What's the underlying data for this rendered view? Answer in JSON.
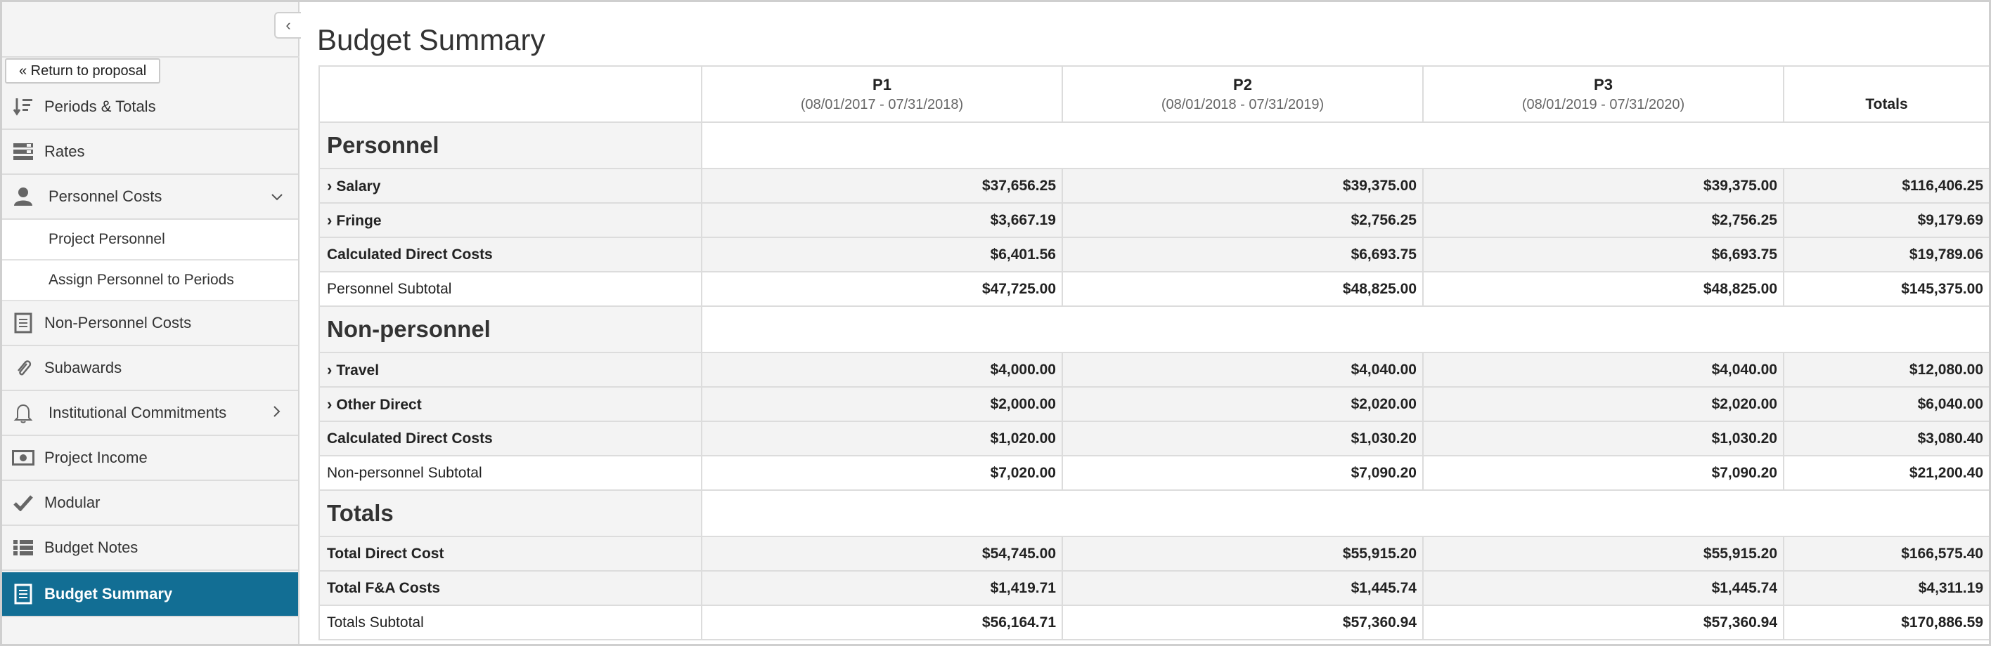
{
  "sidebar": {
    "collapse_icon": "chevron-left-icon",
    "return_label": "« Return to proposal",
    "items": [
      {
        "label": "Periods & Totals",
        "icon": "sort-list-icon"
      },
      {
        "label": "Rates",
        "icon": "rates-icon"
      },
      {
        "label": "Personnel Costs",
        "icon": "person-icon",
        "chevron": "⌄"
      },
      {
        "label": "Project Personnel"
      },
      {
        "label": "Assign Personnel to Periods"
      },
      {
        "label": "Non-Personnel Costs",
        "icon": "document-icon"
      },
      {
        "label": "Subawards",
        "icon": "paperclip-icon"
      },
      {
        "label": "Institutional Commitments",
        "icon": "bell-icon",
        "chevron": "›"
      },
      {
        "label": "Project Income",
        "icon": "money-icon"
      },
      {
        "label": "Modular",
        "icon": "check-icon"
      },
      {
        "label": "Budget Notes",
        "icon": "list-icon"
      },
      {
        "label": "Budget Summary",
        "icon": "document-icon",
        "active": true
      }
    ],
    "active_color": "#126e94"
  },
  "main": {
    "title": "Budget Summary",
    "columns": [
      {
        "name": "P1",
        "dates": "(08/01/2017 - 07/31/2018)"
      },
      {
        "name": "P2",
        "dates": "(08/01/2018 - 07/31/2019)"
      },
      {
        "name": "P3",
        "dates": "(08/01/2019 - 07/31/2020)"
      },
      {
        "name": "Totals"
      }
    ],
    "sections": [
      {
        "title": "Personnel",
        "rows": [
          {
            "label": "Salary",
            "values": [
              "$37,656.25",
              "$39,375.00",
              "$39,375.00",
              "$116,406.25"
            ]
          },
          {
            "label": "Fringe",
            "values": [
              "$3,667.19",
              "$2,756.25",
              "$2,756.25",
              "$9,179.69"
            ]
          },
          {
            "label": "Calculated Direct Costs",
            "values": [
              "$6,401.56",
              "$6,693.75",
              "$6,693.75",
              "$19,789.06"
            ]
          },
          {
            "label": "Personnel Subtotal",
            "values": [
              "$47,725.00",
              "$48,825.00",
              "$48,825.00",
              "$145,375.00"
            ]
          }
        ]
      },
      {
        "title": "Non-personnel",
        "rows": [
          {
            "label": "Travel",
            "values": [
              "$4,000.00",
              "$4,040.00",
              "$4,040.00",
              "$12,080.00"
            ]
          },
          {
            "label": "Other Direct",
            "values": [
              "$2,000.00",
              "$2,020.00",
              "$2,020.00",
              "$6,040.00"
            ]
          },
          {
            "label": "Calculated Direct Costs",
            "values": [
              "$1,020.00",
              "$1,030.20",
              "$1,030.20",
              "$3,080.40"
            ]
          },
          {
            "label": "Non-personnel Subtotal",
            "values": [
              "$7,020.00",
              "$7,090.20",
              "$7,090.20",
              "$21,200.40"
            ]
          }
        ]
      },
      {
        "title": "Totals",
        "rows": [
          {
            "label": "Total Direct Cost",
            "values": [
              "$54,745.00",
              "$55,915.20",
              "$55,915.20",
              "$166,575.40"
            ]
          },
          {
            "label": "Total F&A Costs",
            "values": [
              "$1,419.71",
              "$1,445.74",
              "$1,445.74",
              "$4,311.19"
            ]
          },
          {
            "label": "Totals Subtotal",
            "values": [
              "$56,164.71",
              "$57,360.94",
              "$57,360.94",
              "$170,886.59"
            ]
          }
        ]
      }
    ]
  }
}
